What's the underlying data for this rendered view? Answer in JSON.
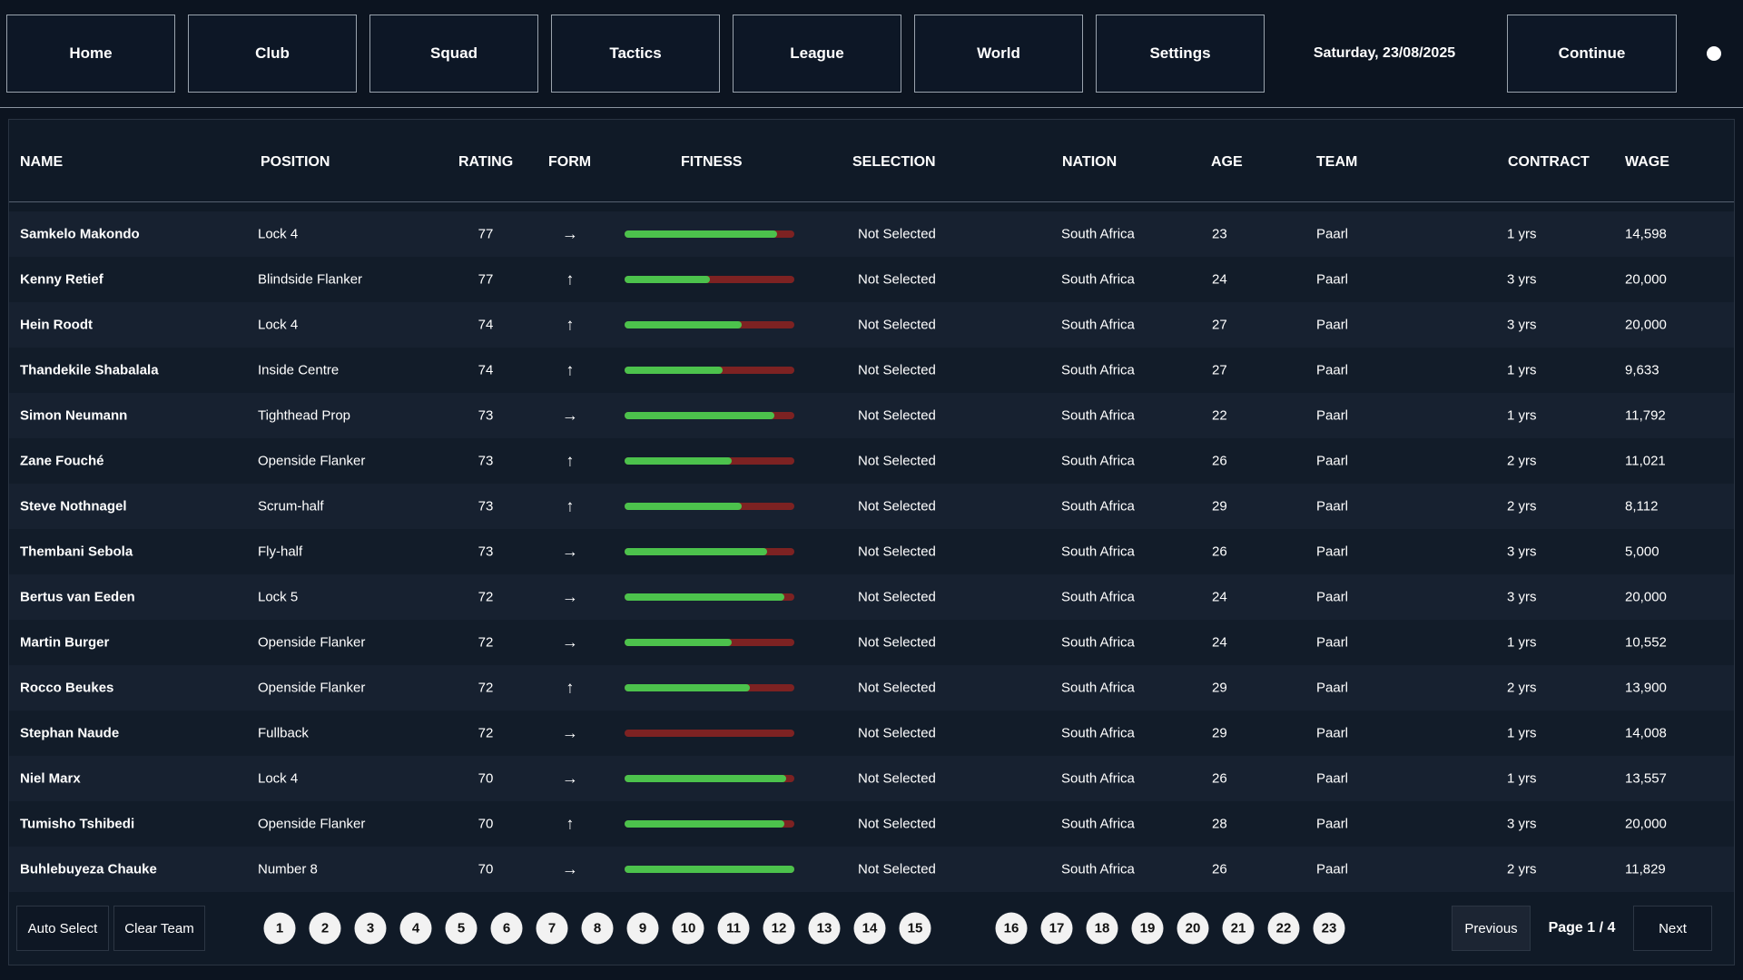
{
  "nav": {
    "items": [
      "Home",
      "Club",
      "Squad",
      "Tactics",
      "League",
      "World",
      "Settings"
    ],
    "date": "Saturday, 23/08/2025",
    "continue": "Continue"
  },
  "table": {
    "headers": [
      "NAME",
      "POSITION",
      "RATING",
      "FORM",
      "FITNESS",
      "SELECTION",
      "NATION",
      "AGE",
      "TEAM",
      "CONTRACT",
      "WAGE"
    ],
    "rows": [
      {
        "name": "Samkelo Makondo",
        "position": "Lock 4",
        "rating": 77,
        "form": "→",
        "fitness": 90,
        "selection": "Not Selected",
        "nation": "South Africa",
        "age": 23,
        "team": "Paarl",
        "contract": "1 yrs",
        "wage": "14,598"
      },
      {
        "name": "Kenny Retief",
        "position": "Blindside Flanker",
        "rating": 77,
        "form": "↑",
        "fitness": 50,
        "selection": "Not Selected",
        "nation": "South Africa",
        "age": 24,
        "team": "Paarl",
        "contract": "3 yrs",
        "wage": "20,000"
      },
      {
        "name": "Hein Roodt",
        "position": "Lock 4",
        "rating": 74,
        "form": "↑",
        "fitness": 69,
        "selection": "Not Selected",
        "nation": "South Africa",
        "age": 27,
        "team": "Paarl",
        "contract": "3 yrs",
        "wage": "20,000"
      },
      {
        "name": "Thandekile Shabalala",
        "position": "Inside Centre",
        "rating": 74,
        "form": "↑",
        "fitness": 58,
        "selection": "Not Selected",
        "nation": "South Africa",
        "age": 27,
        "team": "Paarl",
        "contract": "1 yrs",
        "wage": "9,633"
      },
      {
        "name": "Simon Neumann",
        "position": "Tighthead Prop",
        "rating": 73,
        "form": "→",
        "fitness": 88,
        "selection": "Not Selected",
        "nation": "South Africa",
        "age": 22,
        "team": "Paarl",
        "contract": "1 yrs",
        "wage": "11,792"
      },
      {
        "name": "Zane Fouché",
        "position": "Openside Flanker",
        "rating": 73,
        "form": "↑",
        "fitness": 63,
        "selection": "Not Selected",
        "nation": "South Africa",
        "age": 26,
        "team": "Paarl",
        "contract": "2 yrs",
        "wage": "11,021"
      },
      {
        "name": "Steve Nothnagel",
        "position": "Scrum-half",
        "rating": 73,
        "form": "↑",
        "fitness": 69,
        "selection": "Not Selected",
        "nation": "South Africa",
        "age": 29,
        "team": "Paarl",
        "contract": "2 yrs",
        "wage": "8,112"
      },
      {
        "name": "Thembani Sebola",
        "position": "Fly-half",
        "rating": 73,
        "form": "→",
        "fitness": 84,
        "selection": "Not Selected",
        "nation": "South Africa",
        "age": 26,
        "team": "Paarl",
        "contract": "3 yrs",
        "wage": "5,000"
      },
      {
        "name": "Bertus van Eeden",
        "position": "Lock 5",
        "rating": 72,
        "form": "→",
        "fitness": 94,
        "selection": "Not Selected",
        "nation": "South Africa",
        "age": 24,
        "team": "Paarl",
        "contract": "3 yrs",
        "wage": "20,000"
      },
      {
        "name": "Martin Burger",
        "position": "Openside Flanker",
        "rating": 72,
        "form": "→",
        "fitness": 63,
        "selection": "Not Selected",
        "nation": "South Africa",
        "age": 24,
        "team": "Paarl",
        "contract": "1 yrs",
        "wage": "10,552"
      },
      {
        "name": "Rocco Beukes",
        "position": "Openside Flanker",
        "rating": 72,
        "form": "↑",
        "fitness": 74,
        "selection": "Not Selected",
        "nation": "South Africa",
        "age": 29,
        "team": "Paarl",
        "contract": "2 yrs",
        "wage": "13,900"
      },
      {
        "name": "Stephan Naude",
        "position": "Fullback",
        "rating": 72,
        "form": "→",
        "fitness": 0,
        "selection": "Not Selected",
        "nation": "South Africa",
        "age": 29,
        "team": "Paarl",
        "contract": "1 yrs",
        "wage": "14,008"
      },
      {
        "name": "Niel Marx",
        "position": "Lock 4",
        "rating": 70,
        "form": "→",
        "fitness": 95,
        "selection": "Not Selected",
        "nation": "South Africa",
        "age": 26,
        "team": "Paarl",
        "contract": "1 yrs",
        "wage": "13,557"
      },
      {
        "name": "Tumisho Tshibedi",
        "position": "Openside Flanker",
        "rating": 70,
        "form": "↑",
        "fitness": 94,
        "selection": "Not Selected",
        "nation": "South Africa",
        "age": 28,
        "team": "Paarl",
        "contract": "3 yrs",
        "wage": "20,000"
      },
      {
        "name": "Buhlebuyeza Chauke",
        "position": "Number 8",
        "rating": 70,
        "form": "→",
        "fitness": 100,
        "selection": "Not Selected",
        "nation": "South Africa",
        "age": 26,
        "team": "Paarl",
        "contract": "2 yrs",
        "wage": "11,829"
      }
    ]
  },
  "footer": {
    "auto_select": "Auto Select",
    "clear_team": "Clear Team",
    "pages": [
      1,
      2,
      3,
      4,
      5,
      6,
      7,
      8,
      9,
      10,
      11,
      12,
      13,
      14,
      15,
      16,
      17,
      18,
      19,
      20,
      21,
      22,
      23
    ],
    "previous": "Previous",
    "page_indicator": "Page 1 / 4",
    "next": "Next"
  }
}
